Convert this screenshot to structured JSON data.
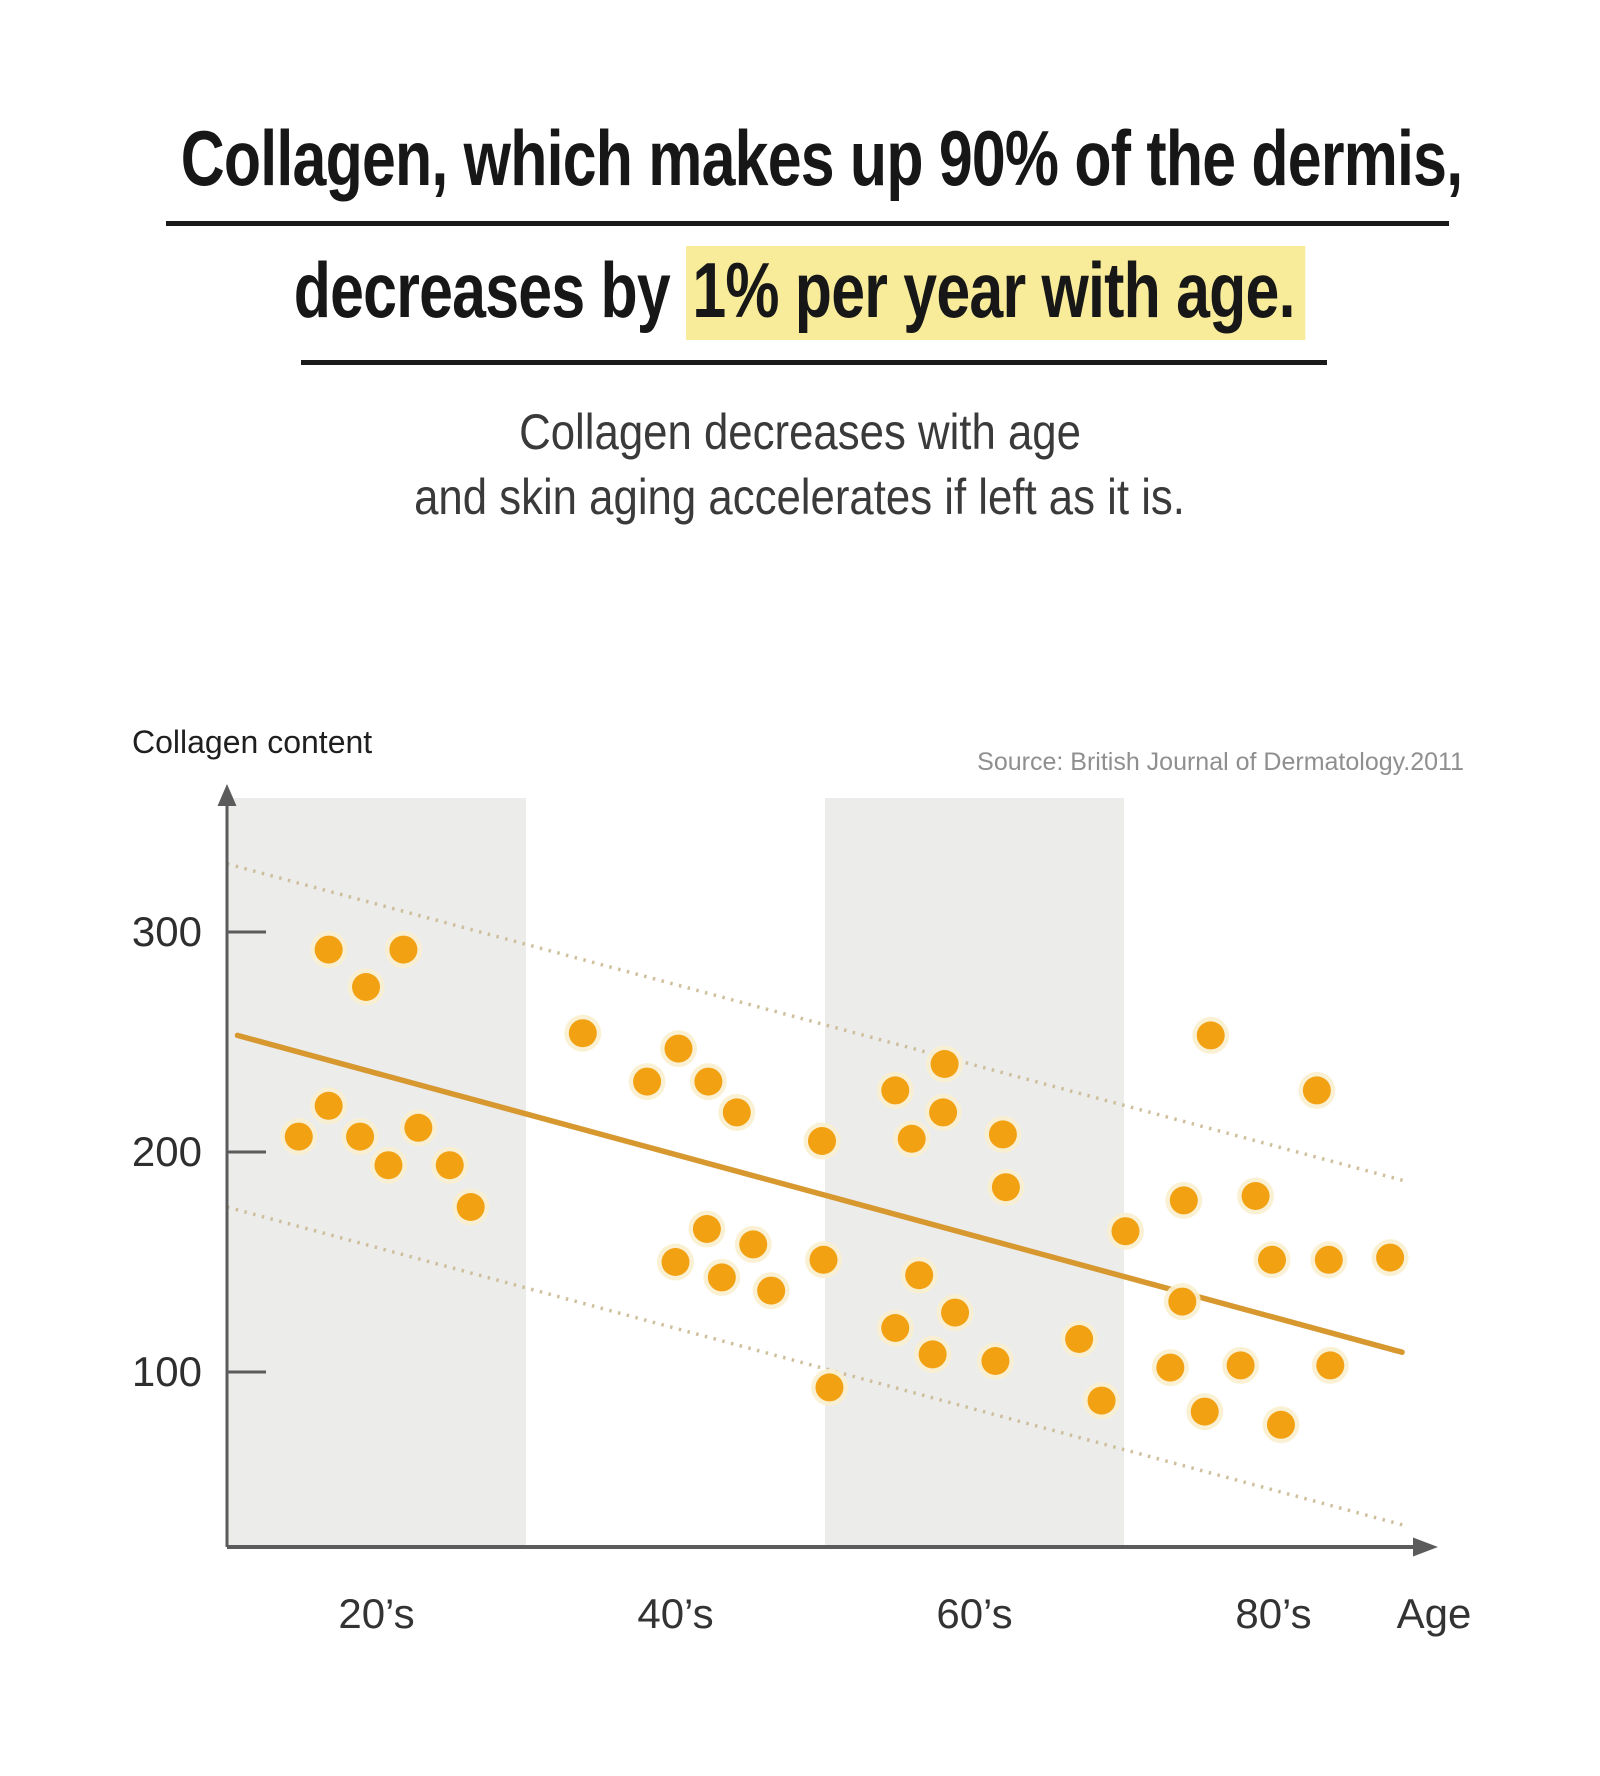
{
  "title": {
    "line1": "Collagen, which makes up 90% of the dermis,",
    "line2_prefix": "decreases by ",
    "line2_highlight": "1% per year with age.",
    "highlight_color": "#F8EC9B"
  },
  "subtitle": {
    "line1": "Collagen decreases with age",
    "line2": "and skin aging accelerates if left as it is."
  },
  "chart": {
    "y_axis_label": "Collagen content",
    "x_axis_label": "Age",
    "source": "Source: British Journal of Dermatology.2011"
  },
  "chart_data": {
    "type": "scatter",
    "title": "Collagen content by age",
    "xlabel": "Age",
    "ylabel": "Collagen content",
    "legend": "none",
    "grid": false,
    "y_ticks": [
      300,
      200,
      100
    ],
    "y_tick_strings": [
      "300",
      "200",
      "100"
    ],
    "x_tick_labels": [
      "20’s",
      "40’s",
      "60’s",
      "80’s"
    ],
    "x_tick_ages": [
      25,
      45,
      65,
      85
    ],
    "x_axis_range_ages": [
      15,
      95
    ],
    "shaded_bands": [
      {
        "label": "20s",
        "age_from": 15,
        "age_to": 35
      },
      {
        "label": "60s",
        "age_from": 55,
        "age_to": 75
      }
    ],
    "trend_line": {
      "age_from": 15.7,
      "value_from": 253,
      "age_to": 93.6,
      "value_to": 109
    },
    "upper_band_line": {
      "age_from": 15,
      "value_from": 331,
      "age_to": 93.7,
      "value_to": 187
    },
    "lower_band_line": {
      "age_from": 15,
      "value_from": 175,
      "age_to": 93.9,
      "value_to": 30
    },
    "points": [
      {
        "age": 21.8,
        "value": 292
      },
      {
        "age": 26.8,
        "value": 292
      },
      {
        "age": 24.3,
        "value": 275
      },
      {
        "age": 21.8,
        "value": 221
      },
      {
        "age": 19.8,
        "value": 207
      },
      {
        "age": 23.9,
        "value": 207
      },
      {
        "age": 27.8,
        "value": 211
      },
      {
        "age": 25.8,
        "value": 194
      },
      {
        "age": 29.9,
        "value": 194
      },
      {
        "age": 31.3,
        "value": 175
      },
      {
        "age": 38.8,
        "value": 254
      },
      {
        "age": 45.2,
        "value": 247
      },
      {
        "age": 43.1,
        "value": 232
      },
      {
        "age": 47.2,
        "value": 232
      },
      {
        "age": 49.1,
        "value": 218
      },
      {
        "age": 54.8,
        "value": 205
      },
      {
        "age": 47.1,
        "value": 165
      },
      {
        "age": 45.0,
        "value": 150
      },
      {
        "age": 50.2,
        "value": 158
      },
      {
        "age": 48.1,
        "value": 143
      },
      {
        "age": 51.4,
        "value": 137
      },
      {
        "age": 54.9,
        "value": 151
      },
      {
        "age": 59.7,
        "value": 228
      },
      {
        "age": 63.0,
        "value": 240
      },
      {
        "age": 62.9,
        "value": 218
      },
      {
        "age": 60.8,
        "value": 206
      },
      {
        "age": 66.9,
        "value": 208
      },
      {
        "age": 67.1,
        "value": 184
      },
      {
        "age": 61.3,
        "value": 144
      },
      {
        "age": 63.7,
        "value": 127
      },
      {
        "age": 59.7,
        "value": 120
      },
      {
        "age": 62.2,
        "value": 108
      },
      {
        "age": 66.4,
        "value": 105
      },
      {
        "age": 55.3,
        "value": 93
      },
      {
        "age": 72.0,
        "value": 115
      },
      {
        "age": 80.8,
        "value": 253
      },
      {
        "age": 87.9,
        "value": 228
      },
      {
        "age": 79.0,
        "value": 178
      },
      {
        "age": 83.8,
        "value": 180
      },
      {
        "age": 75.1,
        "value": 164
      },
      {
        "age": 84.9,
        "value": 151
      },
      {
        "age": 88.7,
        "value": 151
      },
      {
        "age": 92.8,
        "value": 152
      },
      {
        "age": 78.9,
        "value": 132
      },
      {
        "age": 73.5,
        "value": 87
      },
      {
        "age": 78.1,
        "value": 102
      },
      {
        "age": 82.8,
        "value": 103
      },
      {
        "age": 88.8,
        "value": 103
      },
      {
        "age": 80.4,
        "value": 82
      },
      {
        "age": 85.5,
        "value": 76
      }
    ],
    "colors": {
      "dot": "#F2A112",
      "dot_halo": "#FAEFCF",
      "trend_line": "#D6982F",
      "confidence_line": "#CCBD98",
      "shaded_band": "#ECECEB",
      "axis": "#5B5B5B"
    }
  }
}
